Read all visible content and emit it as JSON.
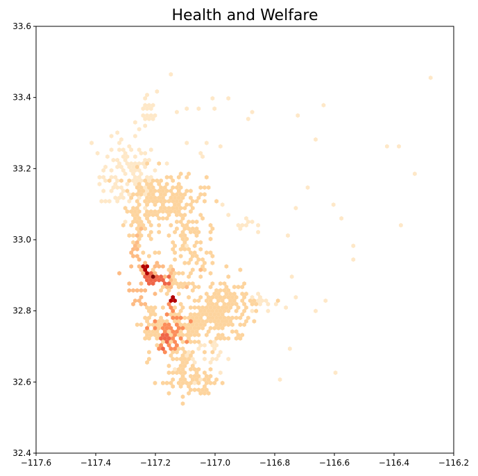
{
  "chart_data": {
    "type": "heatmap",
    "subtype": "hexbin",
    "title": "Health and Welfare",
    "xlabel": "",
    "ylabel": "",
    "xlim": [
      -117.6,
      -116.2
    ],
    "ylim": [
      32.4,
      33.6
    ],
    "x_ticks": [
      -117.6,
      -117.4,
      -117.2,
      -117.0,
      -116.8,
      -116.6,
      -116.4,
      -116.2
    ],
    "x_tick_labels": [
      "−117.6",
      "−117.4",
      "−117.2",
      "−117.0",
      "−116.8",
      "−116.6",
      "−116.4",
      "−116.2"
    ],
    "y_ticks": [
      32.4,
      32.6,
      32.8,
      33.0,
      33.2,
      33.4,
      33.6
    ],
    "y_tick_labels": [
      "32.4",
      "32.6",
      "32.8",
      "33.0",
      "33.2",
      "33.4",
      "33.6"
    ],
    "grid": false,
    "legend": "none",
    "colormap": "OrRd",
    "colors": {
      "c1": "#fff7ec",
      "c2": "#fee8c8",
      "c3": "#fdd49e",
      "c4": "#fdbb84",
      "c5": "#fc8d59",
      "c6": "#ef6548",
      "c7": "#d7301f",
      "c8": "#b30000",
      "c9": "#7f0000"
    },
    "clusters": [
      {
        "x": -117.29,
        "y": 33.18,
        "sx": 0.05,
        "sy": 0.05,
        "n": 120,
        "level": 1
      },
      {
        "x": -117.22,
        "y": 33.12,
        "sx": 0.04,
        "sy": 0.04,
        "n": 90,
        "level": 2
      },
      {
        "x": -117.13,
        "y": 33.12,
        "sx": 0.05,
        "sy": 0.03,
        "n": 110,
        "level": 2
      },
      {
        "x": -117.23,
        "y": 33.35,
        "sx": 0.02,
        "sy": 0.03,
        "n": 25,
        "level": 1
      },
      {
        "x": -117.25,
        "y": 33.04,
        "sx": 0.03,
        "sy": 0.05,
        "n": 50,
        "level": 2
      },
      {
        "x": -117.1,
        "y": 33.0,
        "sx": 0.04,
        "sy": 0.04,
        "n": 60,
        "level": 2
      },
      {
        "x": -117.05,
        "y": 32.96,
        "sx": 0.03,
        "sy": 0.03,
        "n": 30,
        "level": 2
      },
      {
        "x": -117.26,
        "y": 32.98,
        "sx": 0.01,
        "sy": 0.02,
        "n": 12,
        "level": 3
      },
      {
        "x": -117.21,
        "y": 32.9,
        "sx": 0.05,
        "sy": 0.02,
        "n": 45,
        "level": 3
      },
      {
        "x": -117.14,
        "y": 32.89,
        "sx": 0.04,
        "sy": 0.02,
        "n": 35,
        "level": 2
      },
      {
        "x": -117.22,
        "y": 32.89,
        "sx": 0.02,
        "sy": 0.01,
        "n": 14,
        "level": 5
      },
      {
        "x": -117.18,
        "y": 32.885,
        "sx": 0.015,
        "sy": 0.01,
        "n": 12,
        "level": 5
      },
      {
        "x": -117.235,
        "y": 32.915,
        "sx": 0.005,
        "sy": 0.005,
        "n": 4,
        "level": 7
      },
      {
        "x": -117.205,
        "y": 32.895,
        "sx": 0.004,
        "sy": 0.004,
        "n": 4,
        "level": 9
      },
      {
        "x": -117.145,
        "y": 32.83,
        "sx": 0.006,
        "sy": 0.004,
        "n": 5,
        "level": 7
      },
      {
        "x": -117.15,
        "y": 32.81,
        "sx": 0.01,
        "sy": 0.01,
        "n": 6,
        "level": 4
      },
      {
        "x": -117.0,
        "y": 32.8,
        "sx": 0.06,
        "sy": 0.04,
        "n": 170,
        "level": 2
      },
      {
        "x": -117.07,
        "y": 32.76,
        "sx": 0.07,
        "sy": 0.03,
        "n": 150,
        "level": 2
      },
      {
        "x": -117.15,
        "y": 32.74,
        "sx": 0.025,
        "sy": 0.025,
        "n": 40,
        "level": 4
      },
      {
        "x": -117.17,
        "y": 32.72,
        "sx": 0.01,
        "sy": 0.01,
        "n": 8,
        "level": 5
      },
      {
        "x": -117.21,
        "y": 32.76,
        "sx": 0.03,
        "sy": 0.03,
        "n": 40,
        "level": 2
      },
      {
        "x": -117.25,
        "y": 32.83,
        "sx": 0.01,
        "sy": 0.02,
        "n": 12,
        "level": 3
      },
      {
        "x": -117.11,
        "y": 32.65,
        "sx": 0.03,
        "sy": 0.03,
        "n": 60,
        "level": 2
      },
      {
        "x": -117.06,
        "y": 32.6,
        "sx": 0.04,
        "sy": 0.02,
        "n": 50,
        "level": 2
      },
      {
        "x": -117.06,
        "y": 32.67,
        "sx": 0.04,
        "sy": 0.03,
        "n": 40,
        "level": 1
      },
      {
        "x": -116.88,
        "y": 33.04,
        "sx": 0.02,
        "sy": 0.01,
        "n": 12,
        "level": 1
      },
      {
        "x": -116.85,
        "y": 32.82,
        "sx": 0.03,
        "sy": 0.02,
        "n": 16,
        "level": 1
      },
      {
        "x": -116.95,
        "y": 32.84,
        "sx": 0.03,
        "sy": 0.03,
        "n": 40,
        "level": 2
      },
      {
        "x": -117.05,
        "y": 33.27,
        "sx": 0.08,
        "sy": 0.08,
        "n": 12,
        "level": 1
      },
      {
        "x": -116.6,
        "y": 33.0,
        "sx": 0.2,
        "sy": 0.2,
        "n": 12,
        "level": 1
      }
    ],
    "extra_points": [
      {
        "x": -117.42,
        "y": 33.27,
        "level": 1
      },
      {
        "x": -116.33,
        "y": 33.19,
        "level": 1
      },
      {
        "x": -116.38,
        "y": 33.26,
        "level": 1
      },
      {
        "x": -116.42,
        "y": 33.26,
        "level": 1
      },
      {
        "x": -116.6,
        "y": 32.63,
        "level": 1
      },
      {
        "x": -116.78,
        "y": 32.61,
        "level": 1
      },
      {
        "x": -116.75,
        "y": 32.69,
        "level": 1
      },
      {
        "x": -116.66,
        "y": 33.28,
        "level": 1
      },
      {
        "x": -116.64,
        "y": 33.38,
        "level": 1
      },
      {
        "x": -116.72,
        "y": 33.35,
        "level": 1
      },
      {
        "x": -116.87,
        "y": 33.36,
        "level": 1
      },
      {
        "x": -116.89,
        "y": 33.34,
        "level": 1
      },
      {
        "x": -116.58,
        "y": 33.06,
        "level": 1
      },
      {
        "x": -116.6,
        "y": 33.1,
        "level": 1
      },
      {
        "x": -116.79,
        "y": 32.83,
        "level": 2
      },
      {
        "x": -116.73,
        "y": 32.84,
        "level": 1
      },
      {
        "x": -116.63,
        "y": 32.83,
        "level": 1
      },
      {
        "x": -116.66,
        "y": 32.8,
        "level": 1
      },
      {
        "x": -116.98,
        "y": 33.26,
        "level": 1
      },
      {
        "x": -117.2,
        "y": 33.42,
        "level": 1
      },
      {
        "x": -117.13,
        "y": 33.36,
        "level": 1
      },
      {
        "x": -117.05,
        "y": 33.37,
        "level": 1
      },
      {
        "x": -117.09,
        "y": 33.37,
        "level": 1
      }
    ]
  }
}
